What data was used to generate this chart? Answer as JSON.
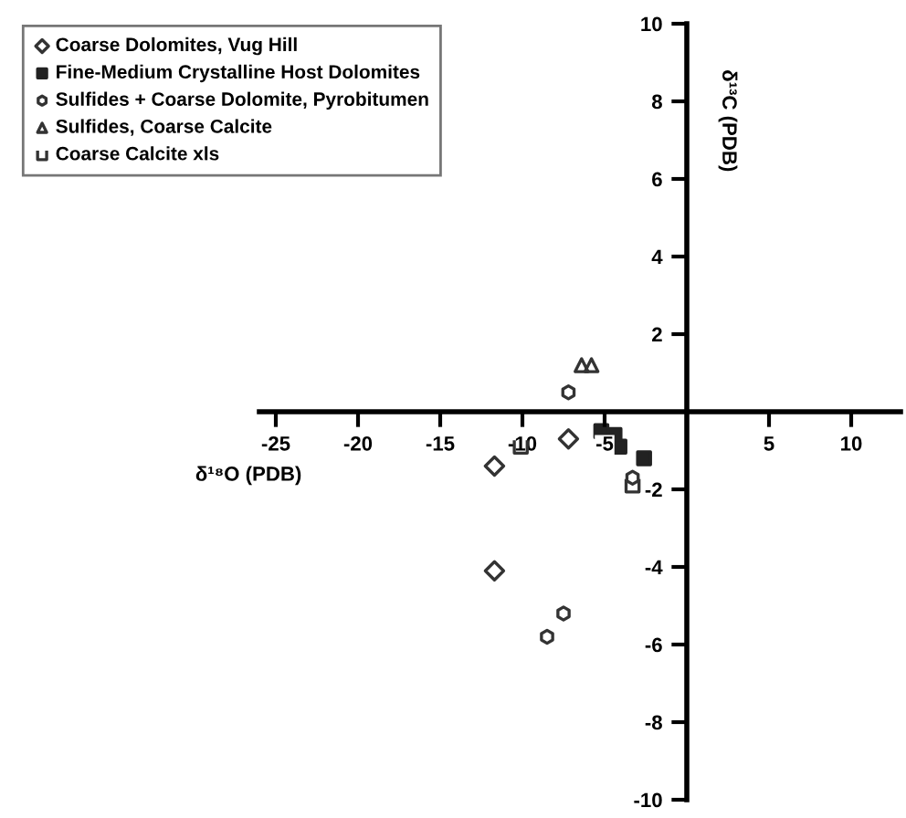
{
  "chart_data": {
    "type": "scatter",
    "xlabel": "δ¹⁸O (PDB)",
    "ylabel": "δ¹³C (PDB)",
    "xlim": [
      -26,
      13
    ],
    "ylim": [
      -10,
      10
    ],
    "xticks": [
      -25,
      -20,
      -15,
      -10,
      -5,
      5,
      10
    ],
    "yticks": [
      -10,
      -8,
      -6,
      -4,
      -2,
      2,
      4,
      6,
      8,
      10
    ],
    "legend": "top left",
    "grid": false,
    "series": [
      {
        "name": "Coarse Dolomites, Vug Hill",
        "marker": "diamond",
        "color": "#333333",
        "x": [
          -7.2,
          -11.7,
          -11.7
        ],
        "values": [
          -0.7,
          -1.4,
          -4.1
        ]
      },
      {
        "name": "Fine-Medium Crystalline Host Dolomites",
        "marker": "square",
        "color": "#222222",
        "x": [
          -5.2,
          -4.4,
          -4.1,
          -2.6
        ],
        "values": [
          -0.5,
          -0.6,
          -0.9,
          -1.2
        ]
      },
      {
        "name": "Sulfides + Coarse Dolomite, Pyrobitumen",
        "marker": "circle",
        "color": "#333333",
        "x": [
          -7.5,
          -8.5,
          -3.3,
          -7.2
        ],
        "values": [
          -5.2,
          -5.8,
          -1.7,
          0.5
        ]
      },
      {
        "name": "Sulfides, Coarse Calcite",
        "marker": "triangle",
        "color": "#333333",
        "x": [
          -6.4,
          -5.8
        ],
        "values": [
          1.2,
          1.2
        ]
      },
      {
        "name": "Coarse Calcite xls",
        "marker": "cross",
        "color": "#333333",
        "x": [
          -10.1,
          -3.3
        ],
        "values": [
          -0.9,
          -1.9
        ]
      }
    ]
  }
}
